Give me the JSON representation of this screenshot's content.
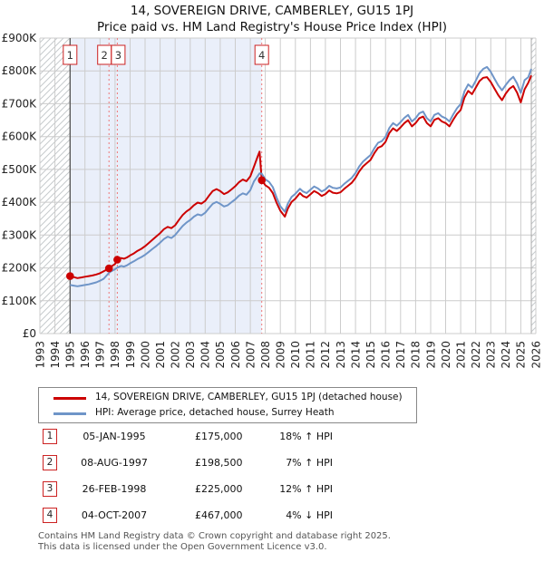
{
  "title": "14, SOVEREIGN DRIVE, CAMBERLEY, GU15 1PJ",
  "subtitle": "Price paid vs. HM Land Registry's House Price Index (HPI)",
  "chart_data": {
    "type": "line",
    "title": "14, SOVEREIGN DRIVE, CAMBERLEY, GU15 1PJ — Price paid vs HPI",
    "xlabel": "",
    "ylabel": "",
    "units": "GBP thousands",
    "x_range": [
      1993,
      2026
    ],
    "ylim": [
      0,
      900
    ],
    "grid": true,
    "x_ticks": [
      1993,
      1994,
      1995,
      1996,
      1997,
      1998,
      1999,
      2000,
      2001,
      2002,
      2003,
      2004,
      2005,
      2006,
      2007,
      2008,
      2009,
      2010,
      2011,
      2012,
      2013,
      2014,
      2015,
      2016,
      2017,
      2018,
      2019,
      2020,
      2021,
      2022,
      2023,
      2024,
      2025,
      2026
    ],
    "y_tick_values": [
      0,
      100,
      200,
      300,
      400,
      500,
      600,
      700,
      800,
      900
    ],
    "y_tick_labels": [
      "£0",
      "£100K",
      "£200K",
      "£300K",
      "£400K",
      "£500K",
      "£600K",
      "£700K",
      "£800K",
      "£900K"
    ],
    "data_extent": [
      1995.01,
      2025.7
    ],
    "ownership_shade": [
      1995.01,
      2007.76
    ],
    "colors": {
      "price_line": "#cc0000",
      "hpi_line": "#6f95c8",
      "shade": "#eaeffa",
      "grid": "#cccccc",
      "sale_dash": "#ee7777",
      "hatch": "#c6cacd",
      "marker_box_border": "#cc2222"
    },
    "series": [
      {
        "name": "14, SOVEREIGN DRIVE, CAMBERLEY, GU15 1PJ (detached house)",
        "color": "#cc0000",
        "points": [
          [
            1995.0,
            175
          ],
          [
            1995.25,
            172
          ],
          [
            1995.5,
            169
          ],
          [
            1995.75,
            171
          ],
          [
            1996.0,
            173
          ],
          [
            1996.25,
            175
          ],
          [
            1996.5,
            177
          ],
          [
            1996.75,
            180
          ],
          [
            1997.0,
            184
          ],
          [
            1997.25,
            190
          ],
          [
            1997.6,
            198.5
          ],
          [
            1997.75,
            204
          ],
          [
            1998.0,
            212
          ],
          [
            1998.15,
            225
          ],
          [
            1998.4,
            230
          ],
          [
            1998.6,
            228
          ],
          [
            1998.8,
            232
          ],
          [
            1999.0,
            238
          ],
          [
            1999.25,
            244
          ],
          [
            1999.5,
            252
          ],
          [
            1999.75,
            258
          ],
          [
            2000.0,
            266
          ],
          [
            2000.25,
            276
          ],
          [
            2000.5,
            286
          ],
          [
            2000.75,
            296
          ],
          [
            2001.0,
            306
          ],
          [
            2001.25,
            318
          ],
          [
            2001.5,
            325
          ],
          [
            2001.75,
            321
          ],
          [
            2002.0,
            330
          ],
          [
            2002.25,
            346
          ],
          [
            2002.5,
            361
          ],
          [
            2002.75,
            372
          ],
          [
            2003.0,
            380
          ],
          [
            2003.25,
            391
          ],
          [
            2003.5,
            399
          ],
          [
            2003.75,
            396
          ],
          [
            2004.0,
            404
          ],
          [
            2004.25,
            420
          ],
          [
            2004.5,
            434
          ],
          [
            2004.75,
            440
          ],
          [
            2005.0,
            434
          ],
          [
            2005.25,
            425
          ],
          [
            2005.5,
            430
          ],
          [
            2005.75,
            439
          ],
          [
            2006.0,
            449
          ],
          [
            2006.25,
            461
          ],
          [
            2006.5,
            469
          ],
          [
            2006.75,
            464
          ],
          [
            2007.0,
            479
          ],
          [
            2007.25,
            509
          ],
          [
            2007.5,
            540
          ],
          [
            2007.62,
            554
          ],
          [
            2007.76,
            467
          ],
          [
            2008.0,
            452
          ],
          [
            2008.25,
            444
          ],
          [
            2008.5,
            428
          ],
          [
            2008.75,
            398
          ],
          [
            2009.0,
            374
          ],
          [
            2009.3,
            356
          ],
          [
            2009.5,
            381
          ],
          [
            2009.75,
            401
          ],
          [
            2010.0,
            411
          ],
          [
            2010.3,
            428
          ],
          [
            2010.5,
            419
          ],
          [
            2010.75,
            414
          ],
          [
            2011.0,
            424
          ],
          [
            2011.25,
            434
          ],
          [
            2011.5,
            428
          ],
          [
            2011.75,
            419
          ],
          [
            2012.0,
            425
          ],
          [
            2012.25,
            436
          ],
          [
            2012.5,
            429
          ],
          [
            2012.75,
            427
          ],
          [
            2013.0,
            430
          ],
          [
            2013.25,
            441
          ],
          [
            2013.5,
            450
          ],
          [
            2013.75,
            459
          ],
          [
            2014.0,
            474
          ],
          [
            2014.25,
            494
          ],
          [
            2014.5,
            509
          ],
          [
            2014.75,
            519
          ],
          [
            2015.0,
            529
          ],
          [
            2015.25,
            549
          ],
          [
            2015.5,
            566
          ],
          [
            2015.75,
            571
          ],
          [
            2016.0,
            584
          ],
          [
            2016.25,
            611
          ],
          [
            2016.5,
            625
          ],
          [
            2016.75,
            617
          ],
          [
            2017.0,
            628
          ],
          [
            2017.25,
            641
          ],
          [
            2017.5,
            650
          ],
          [
            2017.75,
            631
          ],
          [
            2018.0,
            641
          ],
          [
            2018.25,
            656
          ],
          [
            2018.5,
            661
          ],
          [
            2018.75,
            641
          ],
          [
            2019.0,
            631
          ],
          [
            2019.25,
            651
          ],
          [
            2019.5,
            656
          ],
          [
            2019.75,
            646
          ],
          [
            2020.0,
            641
          ],
          [
            2020.25,
            631
          ],
          [
            2020.5,
            651
          ],
          [
            2020.75,
            669
          ],
          [
            2021.0,
            681
          ],
          [
            2021.25,
            719
          ],
          [
            2021.5,
            739
          ],
          [
            2021.75,
            729
          ],
          [
            2022.0,
            749
          ],
          [
            2022.25,
            769
          ],
          [
            2022.5,
            779
          ],
          [
            2022.75,
            781
          ],
          [
            2023.0,
            766
          ],
          [
            2023.25,
            746
          ],
          [
            2023.5,
            726
          ],
          [
            2023.75,
            711
          ],
          [
            2024.0,
            731
          ],
          [
            2024.25,
            746
          ],
          [
            2024.5,
            754
          ],
          [
            2024.75,
            734
          ],
          [
            2025.0,
            704
          ],
          [
            2025.25,
            744
          ],
          [
            2025.5,
            764
          ],
          [
            2025.7,
            786
          ]
        ]
      },
      {
        "name": "HPI: Average price, detached house, Surrey Heath",
        "color": "#6f95c8",
        "points": [
          [
            1995.0,
            148
          ],
          [
            1995.25,
            146
          ],
          [
            1995.5,
            144
          ],
          [
            1995.75,
            146
          ],
          [
            1996.0,
            148
          ],
          [
            1996.25,
            150
          ],
          [
            1996.5,
            153
          ],
          [
            1996.75,
            156
          ],
          [
            1997.0,
            161
          ],
          [
            1997.25,
            167
          ],
          [
            1997.6,
            185
          ],
          [
            1997.75,
            190
          ],
          [
            1998.0,
            196
          ],
          [
            1998.15,
            201
          ],
          [
            1998.4,
            206
          ],
          [
            1998.6,
            204
          ],
          [
            1998.8,
            208
          ],
          [
            1999.0,
            214
          ],
          [
            1999.25,
            220
          ],
          [
            1999.5,
            227
          ],
          [
            1999.75,
            233
          ],
          [
            2000.0,
            240
          ],
          [
            2000.25,
            249
          ],
          [
            2000.5,
            258
          ],
          [
            2000.75,
            267
          ],
          [
            2001.0,
            277
          ],
          [
            2001.25,
            288
          ],
          [
            2001.5,
            295
          ],
          [
            2001.75,
            291
          ],
          [
            2002.0,
            300
          ],
          [
            2002.25,
            314
          ],
          [
            2002.5,
            328
          ],
          [
            2002.75,
            338
          ],
          [
            2003.0,
            346
          ],
          [
            2003.25,
            356
          ],
          [
            2003.5,
            363
          ],
          [
            2003.75,
            360
          ],
          [
            2004.0,
            368
          ],
          [
            2004.25,
            382
          ],
          [
            2004.5,
            395
          ],
          [
            2004.75,
            401
          ],
          [
            2005.0,
            395
          ],
          [
            2005.25,
            387
          ],
          [
            2005.5,
            391
          ],
          [
            2005.75,
            400
          ],
          [
            2006.0,
            409
          ],
          [
            2006.25,
            420
          ],
          [
            2006.5,
            427
          ],
          [
            2006.75,
            423
          ],
          [
            2007.0,
            437
          ],
          [
            2007.25,
            464
          ],
          [
            2007.5,
            480
          ],
          [
            2007.62,
            488
          ],
          [
            2007.76,
            487
          ],
          [
            2008.0,
            470
          ],
          [
            2008.25,
            462
          ],
          [
            2008.5,
            446
          ],
          [
            2008.75,
            414
          ],
          [
            2009.0,
            388
          ],
          [
            2009.3,
            371
          ],
          [
            2009.5,
            396
          ],
          [
            2009.75,
            416
          ],
          [
            2010.0,
            426
          ],
          [
            2010.3,
            441
          ],
          [
            2010.5,
            433
          ],
          [
            2010.75,
            428
          ],
          [
            2011.0,
            438
          ],
          [
            2011.25,
            448
          ],
          [
            2011.5,
            442
          ],
          [
            2011.75,
            433
          ],
          [
            2012.0,
            439
          ],
          [
            2012.25,
            450
          ],
          [
            2012.5,
            444
          ],
          [
            2012.75,
            442
          ],
          [
            2013.0,
            445
          ],
          [
            2013.25,
            456
          ],
          [
            2013.5,
            465
          ],
          [
            2013.75,
            474
          ],
          [
            2014.0,
            489
          ],
          [
            2014.25,
            509
          ],
          [
            2014.5,
            524
          ],
          [
            2014.75,
            534
          ],
          [
            2015.0,
            544
          ],
          [
            2015.25,
            564
          ],
          [
            2015.5,
            581
          ],
          [
            2015.75,
            586
          ],
          [
            2016.0,
            599
          ],
          [
            2016.25,
            626
          ],
          [
            2016.5,
            641
          ],
          [
            2016.75,
            633
          ],
          [
            2017.0,
            644
          ],
          [
            2017.25,
            657
          ],
          [
            2017.5,
            666
          ],
          [
            2017.75,
            646
          ],
          [
            2018.0,
            656
          ],
          [
            2018.25,
            671
          ],
          [
            2018.5,
            676
          ],
          [
            2018.75,
            656
          ],
          [
            2019.0,
            646
          ],
          [
            2019.25,
            666
          ],
          [
            2019.5,
            671
          ],
          [
            2019.75,
            661
          ],
          [
            2020.0,
            656
          ],
          [
            2020.25,
            646
          ],
          [
            2020.5,
            667
          ],
          [
            2020.75,
            686
          ],
          [
            2021.0,
            699
          ],
          [
            2021.25,
            738
          ],
          [
            2021.5,
            759
          ],
          [
            2021.75,
            749
          ],
          [
            2022.0,
            770
          ],
          [
            2022.25,
            793
          ],
          [
            2022.5,
            806
          ],
          [
            2022.75,
            812
          ],
          [
            2023.0,
            797
          ],
          [
            2023.25,
            776
          ],
          [
            2023.5,
            756
          ],
          [
            2023.75,
            741
          ],
          [
            2024.0,
            757
          ],
          [
            2024.25,
            772
          ],
          [
            2024.5,
            782
          ],
          [
            2024.75,
            762
          ],
          [
            2025.0,
            733
          ],
          [
            2025.25,
            772
          ],
          [
            2025.5,
            781
          ],
          [
            2025.7,
            806
          ]
        ]
      }
    ],
    "sales": [
      {
        "n": "1",
        "date": "05-JAN-1995",
        "year": 1995.01,
        "price": 175000,
        "price_display": "£175,000",
        "hpi_delta": "18% ↑ HPI"
      },
      {
        "n": "2",
        "date": "08-AUG-1997",
        "year": 1997.6,
        "price": 198500,
        "price_display": "£198,500",
        "hpi_delta": "7% ↑ HPI"
      },
      {
        "n": "3",
        "date": "26-FEB-1998",
        "year": 1998.15,
        "price": 225000,
        "price_display": "£225,000",
        "hpi_delta": "12% ↑ HPI"
      },
      {
        "n": "4",
        "date": "04-OCT-2007",
        "year": 2007.76,
        "price": 467000,
        "price_display": "£467,000",
        "hpi_delta": "4% ↓ HPI"
      }
    ]
  },
  "legend": {
    "entries": [
      {
        "label": "14, SOVEREIGN DRIVE, CAMBERLEY, GU15 1PJ (detached house)",
        "color": "#cc0000"
      },
      {
        "label": "HPI: Average price, detached house, Surrey Heath",
        "color": "#6f95c8"
      }
    ]
  },
  "footer": {
    "line1": "Contains HM Land Registry data © Crown copyright and database right 2025.",
    "line2": "This data is licensed under the Open Government Licence v3.0."
  }
}
